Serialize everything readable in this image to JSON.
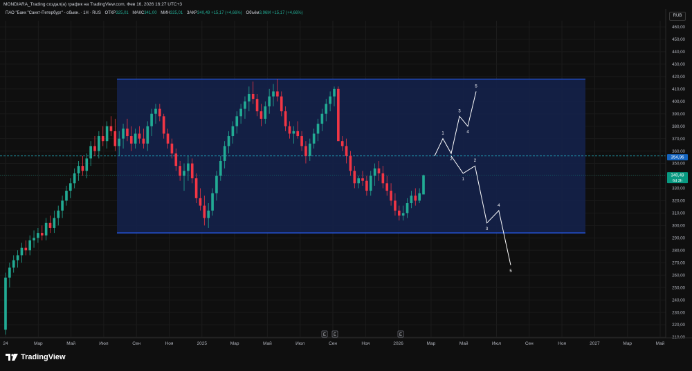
{
  "header": {
    "publisher_line": "MONDIARA_Trading создал(а) график на TradingView.com, Фев 16, 2026 16:27 UTC+3"
  },
  "legend": {
    "symbol": "ПАО \"Банк \"Санкт-Петербург\" - обыкн. · 1Н · RUS",
    "open_label": "ОТКР",
    "open": "325,01",
    "high_label": "МАКС",
    "high": "341,00",
    "low_label": "МИН",
    "low": "325,01",
    "close_label": "ЗАКР",
    "close": "340,49",
    "change": "+15,17 (+4,66%)",
    "volume_label": "Объём",
    "volume": "3,96M",
    "volume_change": "+15,17 (+4,66%)"
  },
  "currency_button": "RUB",
  "brand": "TradingView",
  "colors": {
    "up": "#22ab94",
    "down": "#f23645",
    "box_fill": "#14214a",
    "box_border": "#2962ff",
    "wave": "#ffffff",
    "level": "#26c6da",
    "price_tag": "#089981"
  },
  "chart_data": {
    "type": "candlestick",
    "ylim": [
      210,
      465
    ],
    "y_ticks": [
      "460,00",
      "450,00",
      "440,00",
      "430,00",
      "420,00",
      "410,00",
      "400,00",
      "390,00",
      "380,00",
      "370,00",
      "360,00",
      "350,00",
      "340,00",
      "330,00",
      "320,00",
      "310,00",
      "300,00",
      "290,00",
      "280,00",
      "270,00",
      "260,00",
      "250,00",
      "240,00",
      "230,00",
      "220,00",
      "210,00"
    ],
    "x_ticks": [
      "24",
      "Мар",
      "Май",
      "Июл",
      "Сен",
      "Ноя",
      "2025",
      "Мар",
      "Май",
      "Июл",
      "Сен",
      "Ноя",
      "2026",
      "Мар",
      "Май",
      "Июл",
      "Сен",
      "Ноя",
      "2027",
      "Мар",
      "Май"
    ],
    "earnings_markers": [
      "E",
      "E",
      "E"
    ],
    "candles_ohlc": [
      [
        216,
        262,
        212,
        258
      ],
      [
        258,
        270,
        250,
        266
      ],
      [
        266,
        276,
        262,
        272
      ],
      [
        272,
        280,
        266,
        276
      ],
      [
        276,
        286,
        270,
        282
      ],
      [
        282,
        288,
        276,
        280
      ],
      [
        280,
        292,
        276,
        288
      ],
      [
        288,
        296,
        282,
        290
      ],
      [
        290,
        298,
        286,
        294
      ],
      [
        294,
        300,
        288,
        292
      ],
      [
        292,
        306,
        288,
        302
      ],
      [
        302,
        308,
        294,
        298
      ],
      [
        298,
        312,
        294,
        306
      ],
      [
        306,
        316,
        300,
        312
      ],
      [
        312,
        324,
        306,
        320
      ],
      [
        320,
        332,
        316,
        328
      ],
      [
        328,
        338,
        322,
        334
      ],
      [
        334,
        346,
        330,
        342
      ],
      [
        342,
        352,
        336,
        348
      ],
      [
        348,
        356,
        340,
        344
      ],
      [
        344,
        358,
        338,
        354
      ],
      [
        354,
        368,
        348,
        364
      ],
      [
        364,
        372,
        356,
        360
      ],
      [
        360,
        376,
        354,
        372
      ],
      [
        372,
        380,
        364,
        368
      ],
      [
        368,
        384,
        362,
        380
      ],
      [
        380,
        388,
        372,
        376
      ],
      [
        376,
        386,
        360,
        364
      ],
      [
        364,
        376,
        356,
        370
      ],
      [
        370,
        382,
        362,
        378
      ],
      [
        378,
        386,
        368,
        372
      ],
      [
        372,
        380,
        360,
        366
      ],
      [
        366,
        378,
        362,
        374
      ],
      [
        374,
        380,
        366,
        370
      ],
      [
        370,
        378,
        362,
        366
      ],
      [
        366,
        384,
        360,
        380
      ],
      [
        380,
        394,
        372,
        390
      ],
      [
        390,
        398,
        382,
        394
      ],
      [
        394,
        398,
        384,
        388
      ],
      [
        388,
        390,
        370,
        374
      ],
      [
        374,
        378,
        362,
        366
      ],
      [
        366,
        370,
        354,
        358
      ],
      [
        358,
        362,
        344,
        348
      ],
      [
        348,
        352,
        336,
        340
      ],
      [
        340,
        350,
        328,
        344
      ],
      [
        344,
        356,
        336,
        350
      ],
      [
        350,
        354,
        334,
        338
      ],
      [
        338,
        342,
        318,
        322
      ],
      [
        322,
        330,
        312,
        316
      ],
      [
        316,
        324,
        300,
        306
      ],
      [
        306,
        318,
        298,
        312
      ],
      [
        312,
        330,
        308,
        326
      ],
      [
        326,
        344,
        320,
        340
      ],
      [
        340,
        356,
        336,
        352
      ],
      [
        352,
        368,
        346,
        364
      ],
      [
        364,
        376,
        358,
        372
      ],
      [
        372,
        384,
        366,
        380
      ],
      [
        380,
        392,
        374,
        388
      ],
      [
        388,
        398,
        382,
        394
      ],
      [
        394,
        404,
        386,
        400
      ],
      [
        400,
        412,
        392,
        406
      ],
      [
        406,
        416,
        398,
        402
      ],
      [
        402,
        406,
        388,
        392
      ],
      [
        392,
        398,
        380,
        386
      ],
      [
        386,
        400,
        382,
        396
      ],
      [
        396,
        410,
        390,
        404
      ],
      [
        404,
        414,
        396,
        408
      ],
      [
        408,
        418,
        400,
        404
      ],
      [
        404,
        408,
        388,
        392
      ],
      [
        392,
        396,
        376,
        380
      ],
      [
        380,
        384,
        370,
        374
      ],
      [
        374,
        380,
        366,
        376
      ],
      [
        376,
        384,
        370,
        372
      ],
      [
        372,
        376,
        360,
        364
      ],
      [
        364,
        368,
        350,
        356
      ],
      [
        356,
        370,
        352,
        366
      ],
      [
        366,
        378,
        362,
        374
      ],
      [
        374,
        386,
        368,
        382
      ],
      [
        382,
        394,
        376,
        390
      ],
      [
        390,
        402,
        384,
        398
      ],
      [
        398,
        408,
        392,
        404
      ],
      [
        404,
        412,
        396,
        410
      ],
      [
        410,
        412,
        372,
        368
      ],
      [
        368,
        372,
        360,
        364
      ],
      [
        364,
        370,
        350,
        356
      ],
      [
        356,
        360,
        340,
        344
      ],
      [
        344,
        348,
        330,
        334
      ],
      [
        334,
        340,
        330,
        338
      ],
      [
        338,
        344,
        332,
        336
      ],
      [
        336,
        340,
        324,
        328
      ],
      [
        328,
        344,
        324,
        340
      ],
      [
        340,
        350,
        332,
        346
      ],
      [
        346,
        352,
        336,
        342
      ],
      [
        342,
        348,
        330,
        334
      ],
      [
        334,
        340,
        324,
        328
      ],
      [
        328,
        334,
        316,
        320
      ],
      [
        320,
        326,
        308,
        312
      ],
      [
        312,
        316,
        304,
        308
      ],
      [
        308,
        316,
        304,
        310
      ],
      [
        310,
        322,
        306,
        318
      ],
      [
        318,
        328,
        314,
        324
      ],
      [
        324,
        330,
        316,
        320
      ],
      [
        320,
        330,
        318,
        326
      ],
      [
        325.01,
        341,
        325.01,
        340.49
      ]
    ],
    "channel_top": 418,
    "channel_bottom": 294,
    "level_dashed": 356,
    "level_current": 340.49,
    "price_tags": [
      {
        "label": "354,96",
        "value": 354.96
      },
      {
        "label": "340,49",
        "value": 340.49,
        "sub": "6d 3h"
      }
    ],
    "wave_up": {
      "points": [
        [
          356,
          ""
        ],
        [
          370,
          "1"
        ],
        [
          358,
          "2"
        ],
        [
          388,
          "3"
        ],
        [
          380,
          "4"
        ],
        [
          408,
          "5"
        ]
      ]
    },
    "wave_down": {
      "points": [
        [
          356,
          ""
        ],
        [
          342,
          "1"
        ],
        [
          348,
          "2"
        ],
        [
          302,
          "3"
        ],
        [
          312,
          "4"
        ],
        [
          268,
          "5"
        ]
      ]
    }
  }
}
